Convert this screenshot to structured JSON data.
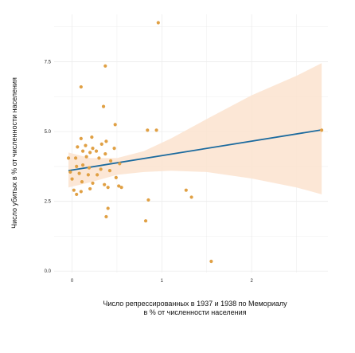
{
  "chart_data": {
    "type": "scatter",
    "title": "",
    "xlabel_lines": [
      "Число репрессированных в 1937 и 1938 по Мемориалу",
      "в % от численности населения"
    ],
    "ylabel": "Число убитых в % от численности населения",
    "xlim": [
      -0.2,
      2.85
    ],
    "ylim": [
      -0.05,
      9.2
    ],
    "x_ticks": [
      0,
      1,
      2
    ],
    "y_ticks": [
      {
        "value": 0.0,
        "label": "0.0"
      },
      {
        "value": 2.5,
        "label": "2.5"
      },
      {
        "value": 5.0,
        "label": "5.0"
      },
      {
        "value": 7.5,
        "label": "7.5"
      }
    ],
    "grid": true,
    "colors": {
      "points": "#E0A044",
      "line": "#1B6A9E",
      "band": "#FBE3CF",
      "grid": "#ECECEC",
      "text": "#222222"
    },
    "regression": {
      "x": [
        -0.04,
        2.78
      ],
      "y": [
        3.6,
        5.06
      ]
    },
    "confidence_band": {
      "x": [
        -0.04,
        0.2,
        0.5,
        0.8,
        1.1,
        1.5,
        2.0,
        2.5,
        2.78
      ],
      "upper": [
        4.25,
        4.05,
        4.05,
        4.3,
        4.75,
        5.45,
        6.3,
        7.0,
        7.45
      ],
      "lower": [
        3.0,
        3.18,
        3.45,
        3.55,
        3.6,
        3.55,
        3.32,
        3.0,
        2.75
      ]
    },
    "points": [
      {
        "x": 0.96,
        "y": 8.9
      },
      {
        "x": 0.37,
        "y": 7.35
      },
      {
        "x": 0.1,
        "y": 6.6
      },
      {
        "x": 0.35,
        "y": 5.9
      },
      {
        "x": 0.48,
        "y": 5.25
      },
      {
        "x": 0.84,
        "y": 5.05
      },
      {
        "x": 0.94,
        "y": 5.05
      },
      {
        "x": 2.78,
        "y": 5.05
      },
      {
        "x": 0.1,
        "y": 4.75
      },
      {
        "x": 0.22,
        "y": 4.8
      },
      {
        "x": 0.38,
        "y": 4.65
      },
      {
        "x": 0.06,
        "y": 4.45
      },
      {
        "x": 0.15,
        "y": 4.5
      },
      {
        "x": 0.23,
        "y": 4.4
      },
      {
        "x": 0.33,
        "y": 4.55
      },
      {
        "x": 0.47,
        "y": 4.4
      },
      {
        "x": 0.12,
        "y": 4.3
      },
      {
        "x": 0.2,
        "y": 4.25
      },
      {
        "x": 0.27,
        "y": 4.3
      },
      {
        "x": 0.37,
        "y": 4.2
      },
      {
        "x": -0.04,
        "y": 4.05
      },
      {
        "x": 0.04,
        "y": 4.05
      },
      {
        "x": 0.16,
        "y": 4.1
      },
      {
        "x": 0.3,
        "y": 4.05
      },
      {
        "x": 0.43,
        "y": 3.95
      },
      {
        "x": 0.53,
        "y": 3.85
      },
      {
        "x": 0.05,
        "y": 3.75
      },
      {
        "x": 0.12,
        "y": 3.8
      },
      {
        "x": 0.19,
        "y": 3.7
      },
      {
        "x": 0.32,
        "y": 3.65
      },
      {
        "x": 0.42,
        "y": 3.6
      },
      {
        "x": -0.02,
        "y": 3.55
      },
      {
        "x": 0.08,
        "y": 3.5
      },
      {
        "x": 0.18,
        "y": 3.45
      },
      {
        "x": 0.28,
        "y": 3.45
      },
      {
        "x": 0.49,
        "y": 3.35
      },
      {
        "x": 0.0,
        "y": 3.3
      },
      {
        "x": 0.11,
        "y": 3.2
      },
      {
        "x": 0.23,
        "y": 3.15
      },
      {
        "x": 0.36,
        "y": 3.1
      },
      {
        "x": 0.52,
        "y": 3.05
      },
      {
        "x": 0.02,
        "y": 2.9
      },
      {
        "x": 0.1,
        "y": 2.85
      },
      {
        "x": 0.2,
        "y": 2.95
      },
      {
        "x": 0.4,
        "y": 3.0
      },
      {
        "x": 0.55,
        "y": 3.0
      },
      {
        "x": 0.05,
        "y": 2.75
      },
      {
        "x": 1.27,
        "y": 2.9
      },
      {
        "x": 1.33,
        "y": 2.65
      },
      {
        "x": 0.85,
        "y": 2.55
      },
      {
        "x": 0.4,
        "y": 2.25
      },
      {
        "x": 0.38,
        "y": 1.95
      },
      {
        "x": 0.82,
        "y": 1.8
      },
      {
        "x": 1.55,
        "y": 0.35
      }
    ]
  }
}
